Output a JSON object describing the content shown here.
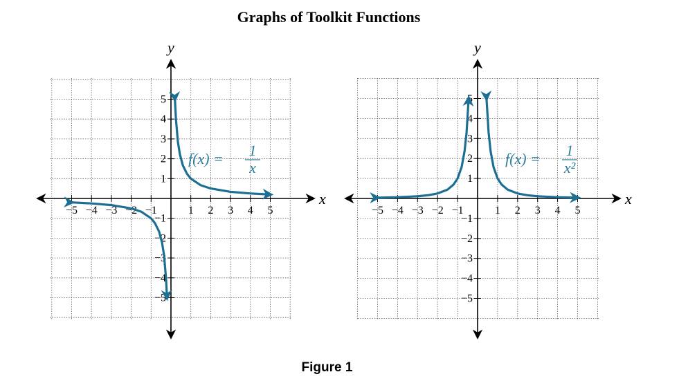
{
  "page": {
    "title": "Graphs of Toolkit Functions",
    "caption": "Figure 1"
  },
  "colors": {
    "curve": "#1c6f93",
    "label": "#2b7f9e",
    "grid": "#555555",
    "axis": "#000000"
  },
  "chart_data": [
    {
      "type": "line",
      "xlabel": "x",
      "ylabel": "y",
      "xlim": [
        -6,
        6
      ],
      "ylim": [
        -6,
        6
      ],
      "x_tick_labels": [
        "−5",
        "−4",
        "−3",
        "−2",
        "−1",
        "1",
        "2",
        "3",
        "4",
        "5"
      ],
      "y_tick_labels": [
        "5",
        "4",
        "3",
        "2",
        "1",
        "−1",
        "−2",
        "−3",
        "−4",
        "−5"
      ],
      "grid": true,
      "function_label": {
        "lhs": "f(x) =",
        "numerator": "1",
        "denominator": "x"
      },
      "series": [
        {
          "x": [
            -5,
            -4,
            -3,
            -2,
            -1.5,
            -1,
            -0.8,
            -0.6,
            -0.45,
            -0.35,
            -0.25,
            -0.2
          ],
          "y": [
            -0.2,
            -0.25,
            -0.333,
            -0.5,
            -0.667,
            -1,
            -1.25,
            -1.667,
            -2.222,
            -2.857,
            -4,
            -5
          ]
        },
        {
          "x": [
            0.2,
            0.25,
            0.35,
            0.45,
            0.6,
            0.8,
            1,
            1.5,
            2,
            3,
            4,
            5
          ],
          "y": [
            5,
            4,
            2.857,
            2.222,
            1.667,
            1.25,
            1,
            0.667,
            0.5,
            0.333,
            0.25,
            0.2
          ]
        }
      ]
    },
    {
      "type": "line",
      "xlabel": "x",
      "ylabel": "y",
      "xlim": [
        -6,
        6
      ],
      "ylim": [
        -6,
        6
      ],
      "x_tick_labels": [
        "−5",
        "−4",
        "−3",
        "−2",
        "−1",
        "1",
        "2",
        "3",
        "4",
        "5"
      ],
      "y_tick_labels": [
        "5",
        "4",
        "3",
        "2",
        "1",
        "−1",
        "−2",
        "−3",
        "−4",
        "−5"
      ],
      "grid": true,
      "function_label": {
        "lhs": "f(x) =",
        "numerator": "1",
        "denominator": "x²"
      },
      "series": [
        {
          "x": [
            -5,
            -4,
            -3,
            -2.5,
            -2,
            -1.5,
            -1.2,
            -1,
            -0.8,
            -0.65,
            -0.55,
            -0.447
          ],
          "y": [
            0.04,
            0.0625,
            0.111,
            0.16,
            0.25,
            0.444,
            0.694,
            1,
            1.5625,
            2.367,
            3.306,
            5
          ]
        },
        {
          "x": [
            0.447,
            0.55,
            0.65,
            0.8,
            1,
            1.2,
            1.5,
            2,
            2.5,
            3,
            4,
            5
          ],
          "y": [
            5,
            3.306,
            2.367,
            1.5625,
            1,
            0.694,
            0.444,
            0.25,
            0.16,
            0.111,
            0.0625,
            0.04
          ]
        }
      ]
    }
  ]
}
